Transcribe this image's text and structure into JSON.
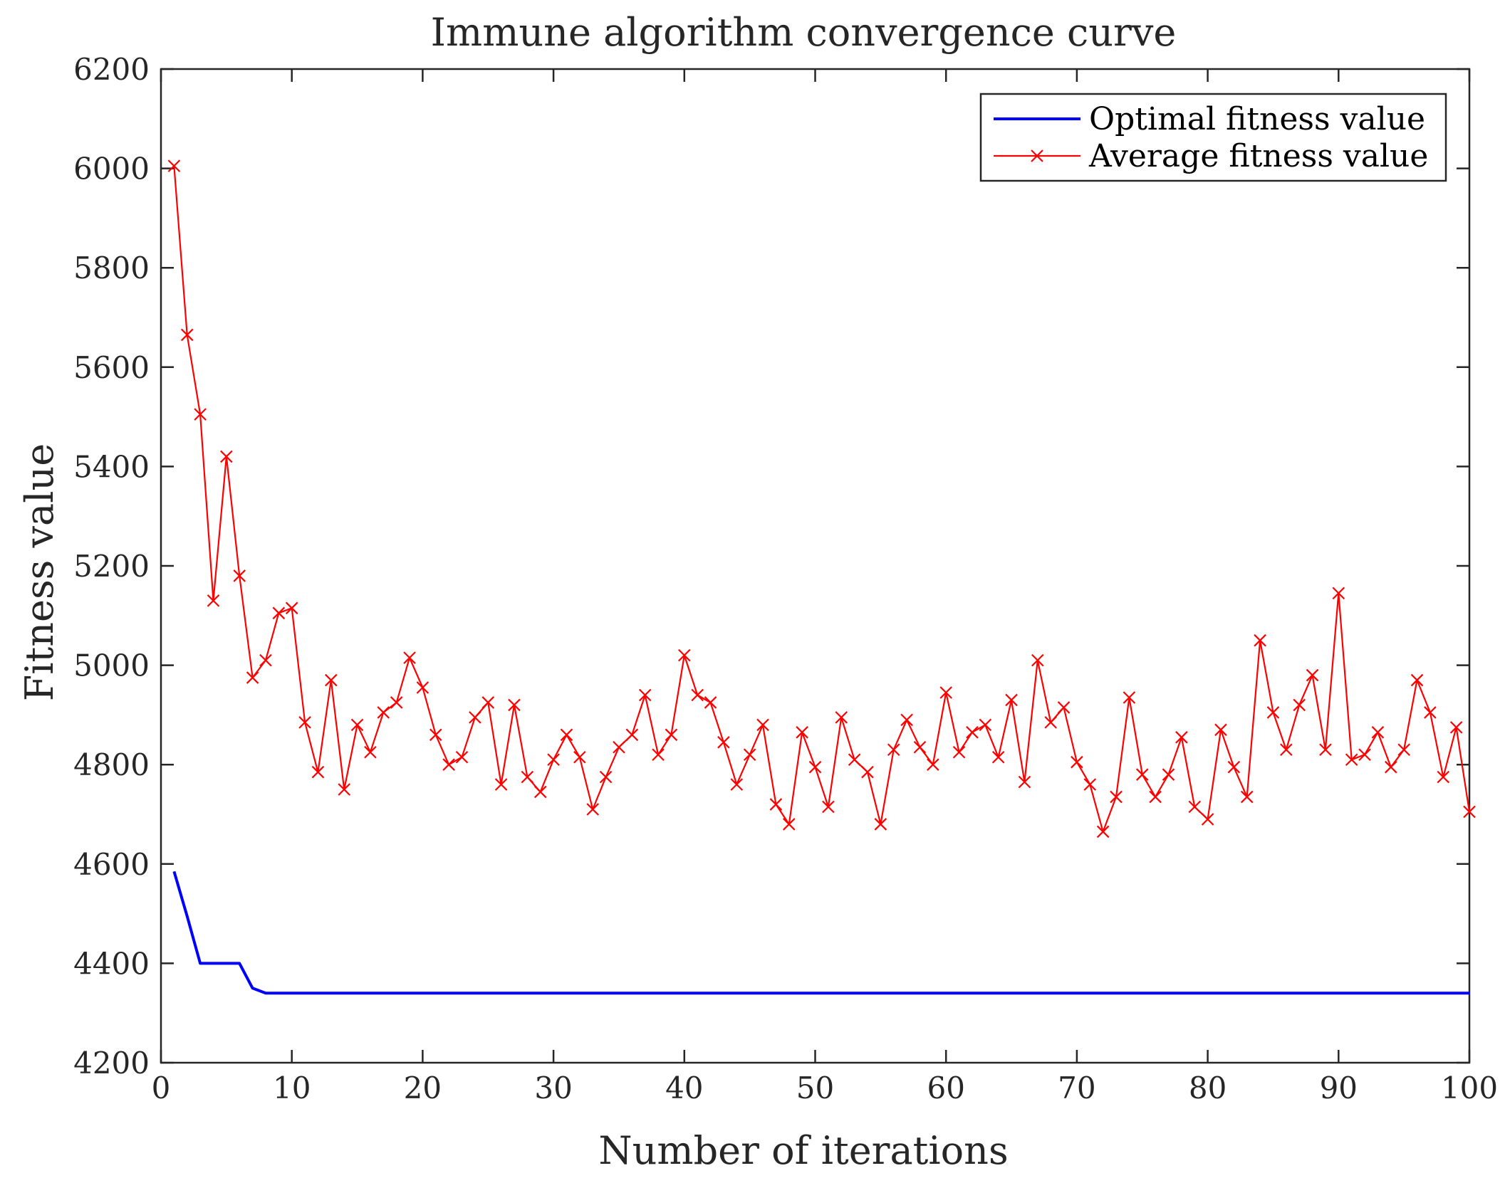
{
  "chart_data": {
    "type": "line",
    "title": "Immune algorithm convergence curve",
    "xlabel": "Number of iterations",
    "ylabel": "Fitness value",
    "xlim": [
      0,
      100
    ],
    "ylim": [
      4200,
      6200
    ],
    "xticks": [
      0,
      10,
      20,
      30,
      40,
      50,
      60,
      70,
      80,
      90,
      100
    ],
    "yticks": [
      4200,
      4400,
      4600,
      4800,
      5000,
      5200,
      5400,
      5600,
      5800,
      6000,
      6200
    ],
    "grid": false,
    "legend_position": "top-right",
    "series": [
      {
        "name": "Optimal fitness value",
        "color": "#0000ff",
        "marker": "none",
        "x": [
          1,
          2,
          3,
          4,
          5,
          6,
          7,
          8,
          9,
          10,
          11,
          12,
          13,
          14,
          15,
          16,
          17,
          18,
          19,
          20,
          21,
          22,
          23,
          24,
          25,
          26,
          27,
          28,
          29,
          30,
          31,
          32,
          33,
          34,
          35,
          36,
          37,
          38,
          39,
          40,
          41,
          42,
          43,
          44,
          45,
          46,
          47,
          48,
          49,
          50,
          51,
          52,
          53,
          54,
          55,
          56,
          57,
          58,
          59,
          60,
          61,
          62,
          63,
          64,
          65,
          66,
          67,
          68,
          69,
          70,
          71,
          72,
          73,
          74,
          75,
          76,
          77,
          78,
          79,
          80,
          81,
          82,
          83,
          84,
          85,
          86,
          87,
          88,
          89,
          90,
          91,
          92,
          93,
          94,
          95,
          96,
          97,
          98,
          99,
          100
        ],
        "values": [
          4585,
          4495,
          4400,
          4400,
          4400,
          4400,
          4350,
          4340,
          4340,
          4340,
          4340,
          4340,
          4340,
          4340,
          4340,
          4340,
          4340,
          4340,
          4340,
          4340,
          4340,
          4340,
          4340,
          4340,
          4340,
          4340,
          4340,
          4340,
          4340,
          4340,
          4340,
          4340,
          4340,
          4340,
          4340,
          4340,
          4340,
          4340,
          4340,
          4340,
          4340,
          4340,
          4340,
          4340,
          4340,
          4340,
          4340,
          4340,
          4340,
          4340,
          4340,
          4340,
          4340,
          4340,
          4340,
          4340,
          4340,
          4340,
          4340,
          4340,
          4340,
          4340,
          4340,
          4340,
          4340,
          4340,
          4340,
          4340,
          4340,
          4340,
          4340,
          4340,
          4340,
          4340,
          4340,
          4340,
          4340,
          4340,
          4340,
          4340,
          4340,
          4340,
          4340,
          4340,
          4340,
          4340,
          4340,
          4340,
          4340,
          4340,
          4340,
          4340,
          4340,
          4340,
          4340,
          4340,
          4340,
          4340,
          4340,
          4340
        ]
      },
      {
        "name": "Average fitness value",
        "color": "#ff0000",
        "marker": "x",
        "x": [
          1,
          2,
          3,
          4,
          5,
          6,
          7,
          8,
          9,
          10,
          11,
          12,
          13,
          14,
          15,
          16,
          17,
          18,
          19,
          20,
          21,
          22,
          23,
          24,
          25,
          26,
          27,
          28,
          29,
          30,
          31,
          32,
          33,
          34,
          35,
          36,
          37,
          38,
          39,
          40,
          41,
          42,
          43,
          44,
          45,
          46,
          47,
          48,
          49,
          50,
          51,
          52,
          53,
          54,
          55,
          56,
          57,
          58,
          59,
          60,
          61,
          62,
          63,
          64,
          65,
          66,
          67,
          68,
          69,
          70,
          71,
          72,
          73,
          74,
          75,
          76,
          77,
          78,
          79,
          80,
          81,
          82,
          83,
          84,
          85,
          86,
          87,
          88,
          89,
          90,
          91,
          92,
          93,
          94,
          95,
          96,
          97,
          98,
          99,
          100
        ],
        "values": [
          6005,
          5665,
          5505,
          5130,
          5420,
          5180,
          4975,
          5010,
          5105,
          5115,
          4885,
          4785,
          4970,
          4750,
          4880,
          4825,
          4905,
          4925,
          5015,
          4955,
          4860,
          4800,
          4815,
          4895,
          4925,
          4760,
          4920,
          4775,
          4745,
          4810,
          4860,
          4815,
          4710,
          4775,
          4835,
          4860,
          4940,
          4820,
          4860,
          5020,
          4940,
          4925,
          4845,
          4760,
          4820,
          4880,
          4720,
          4680,
          4865,
          4795,
          4715,
          4895,
          4810,
          4785,
          4680,
          4830,
          4890,
          4835,
          4800,
          4945,
          4825,
          4865,
          4880,
          4815,
          4930,
          4765,
          5010,
          4885,
          4915,
          4805,
          4760,
          4665,
          4735,
          4935,
          4780,
          4735,
          4780,
          4855,
          4715,
          4690,
          4870,
          4795,
          4735,
          5050,
          4905,
          4830,
          4920,
          4980,
          4830,
          5145,
          4810,
          4820,
          4865,
          4795,
          4830,
          4970,
          4905,
          4775,
          4875,
          4705
        ]
      }
    ]
  }
}
